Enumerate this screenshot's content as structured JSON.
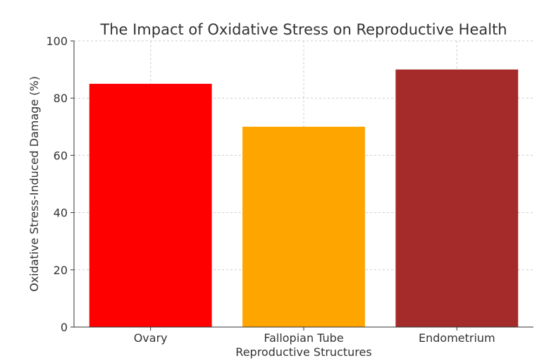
{
  "chart_data": {
    "type": "bar",
    "title": "The Impact of Oxidative Stress on Reproductive Health",
    "xlabel": "Reproductive Structures",
    "ylabel": "Oxidative Stress-Induced Damage (%)",
    "categories": [
      "Ovary",
      "Fallopian Tube",
      "Endometrium"
    ],
    "values": [
      85,
      70,
      90
    ],
    "colors": [
      "#ff0000",
      "#ffa500",
      "#a52a2a"
    ],
    "ylim": [
      0,
      100
    ],
    "yticks": [
      0,
      20,
      40,
      60,
      80,
      100
    ],
    "grid": true
  }
}
